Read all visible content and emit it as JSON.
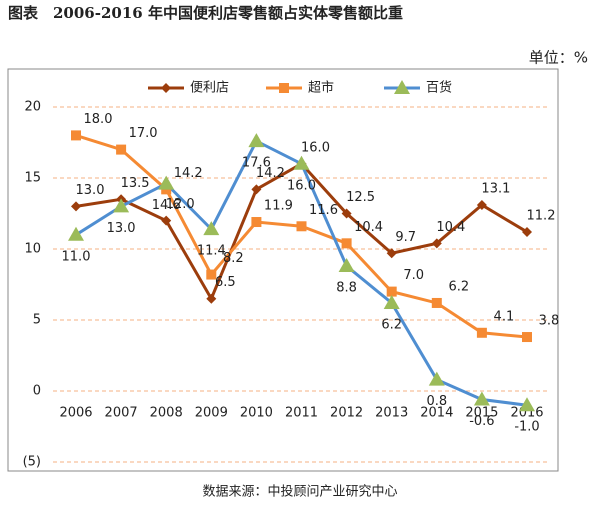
{
  "chart_data": {
    "type": "line",
    "title": "图表　2006-2016 年中国便利店零售额占实体零售额比重",
    "unit": "单位：%",
    "source": "数据来源：中投顾问产业研究中心",
    "categories": [
      "2006",
      "2007",
      "2008",
      "2009",
      "2010",
      "2011",
      "2012",
      "2013",
      "2014",
      "2015",
      "2016"
    ],
    "ylim": [
      -5,
      20
    ],
    "yticks": [
      {
        "value": -5,
        "label": "(5)"
      },
      0,
      5,
      10,
      15,
      20
    ],
    "grid": true,
    "legend": "top",
    "series": [
      {
        "name": "便利店",
        "color": "#9c3d0c",
        "marker": "diamond",
        "values": [
          13.0,
          13.5,
          12.0,
          6.5,
          14.2,
          16.0,
          12.5,
          9.7,
          10.4,
          13.1,
          11.2
        ],
        "value_labels": [
          "13.0",
          "13.5",
          "12.0",
          "6.5",
          "14.2",
          "16.0",
          "12.5",
          "9.7",
          "10.4",
          "13.1",
          "11.2"
        ]
      },
      {
        "name": "超市",
        "color": "#f58a33",
        "marker": "square",
        "values": [
          18.0,
          17.0,
          14.2,
          8.2,
          11.9,
          11.6,
          10.4,
          7.0,
          6.2,
          4.1,
          3.8
        ],
        "value_labels": [
          "18.0",
          "17.0",
          "14.2",
          "8.2",
          "11.9",
          "11.6",
          "10.4",
          "7.0",
          "6.2",
          "4.1",
          "3.8"
        ]
      },
      {
        "name": "百货",
        "color": "#4f8ed1",
        "marker_color": "#9bbb59",
        "marker": "triangle",
        "values": [
          11.0,
          13.0,
          14.6,
          11.4,
          17.6,
          16.0,
          8.8,
          6.2,
          0.8,
          -0.6,
          -1.0
        ],
        "value_labels": [
          "11.0",
          "13.0",
          "14.6",
          "11.4",
          "17.6",
          "16.0",
          "8.8",
          "6.2",
          "0.8",
          "-0.6",
          "-1.0"
        ]
      }
    ]
  }
}
